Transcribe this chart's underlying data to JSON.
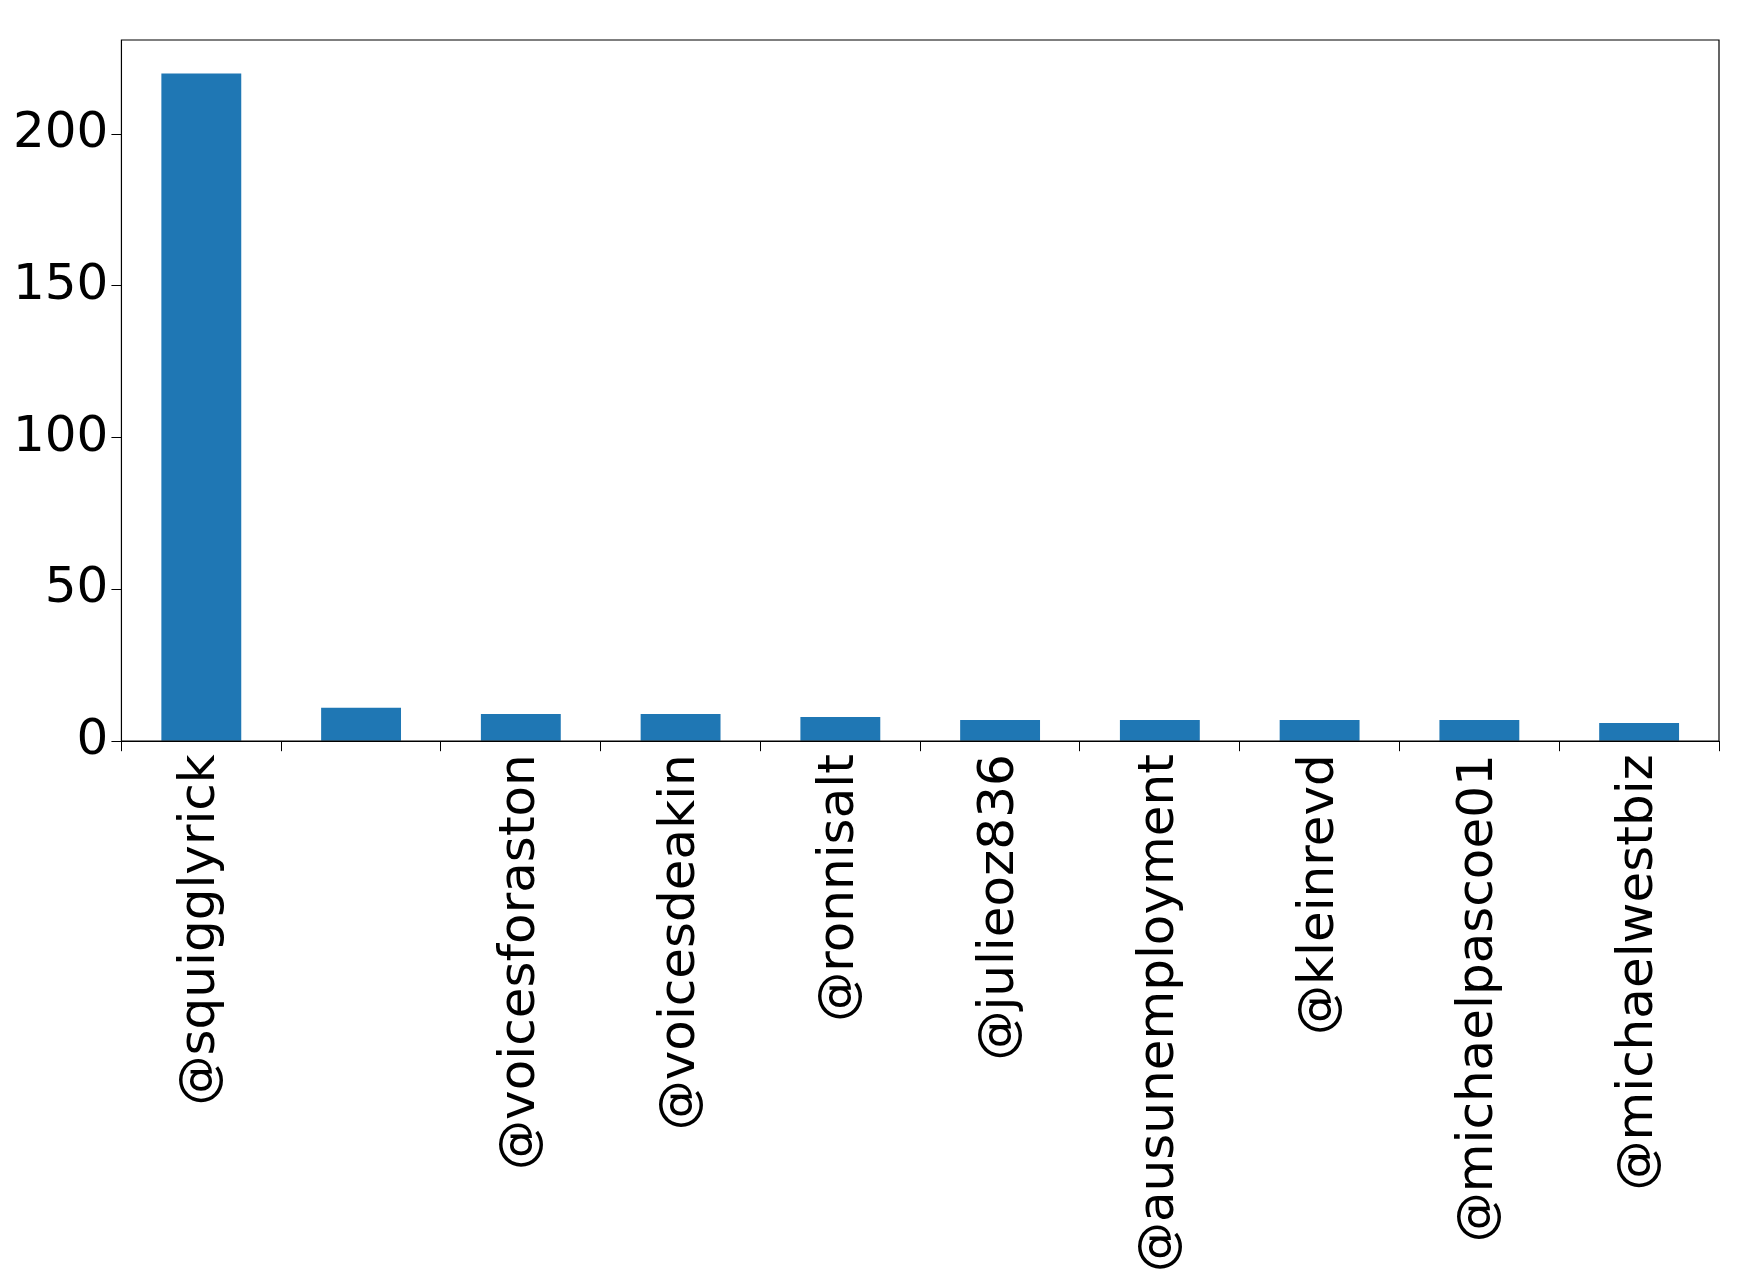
{
  "chart_data": {
    "type": "bar",
    "categories": [
      "@squigglyrick",
      null,
      "@voicesforaston",
      "@voicesdeakin",
      "@ronnisalt",
      "@julieoz836",
      "@ausunemployment",
      "@kleinrevd",
      "@michaelpascoe01",
      "@michaelwestbiz"
    ],
    "values": [
      220,
      11,
      9,
      9,
      8,
      7,
      7,
      7,
      7,
      6
    ],
    "color": "#1f77b4",
    "ylim": [
      0,
      231
    ],
    "yticks": [
      0,
      50,
      100,
      150,
      200
    ],
    "grid": false,
    "legend": false
  }
}
